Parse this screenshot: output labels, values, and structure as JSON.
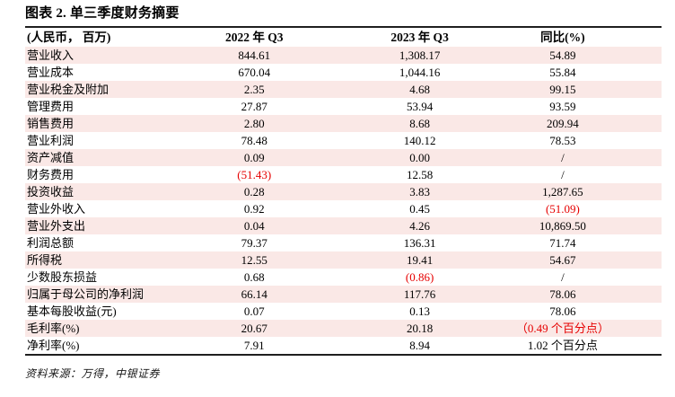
{
  "title": "图表 2. 单三季度财务摘要",
  "source": "资料来源：万得，中银证券",
  "colors": {
    "stripe_pink": "#fae8e6",
    "negative_red": "#e60000",
    "rule_dark": "#1f1f1f"
  },
  "table": {
    "headers": [
      "(人民币， 百万)",
      "2022 年 Q3",
      "2023 年 Q3",
      "同比(%)"
    ],
    "rows": [
      {
        "label": "营业收入",
        "q3_2022": "844.61",
        "q3_2023": "1,308.17",
        "yoy": "54.89"
      },
      {
        "label": "营业成本",
        "q3_2022": "670.04",
        "q3_2023": "1,044.16",
        "yoy": "55.84"
      },
      {
        "label": "营业税金及附加",
        "q3_2022": "2.35",
        "q3_2023": "4.68",
        "yoy": "99.15"
      },
      {
        "label": "管理费用",
        "q3_2022": "27.87",
        "q3_2023": "53.94",
        "yoy": "93.59"
      },
      {
        "label": "销售费用",
        "q3_2022": "2.80",
        "q3_2023": "8.68",
        "yoy": "209.94"
      },
      {
        "label": "营业利润",
        "q3_2022": "78.48",
        "q3_2023": "140.12",
        "yoy": "78.53"
      },
      {
        "label": "资产减值",
        "q3_2022": "0.09",
        "q3_2023": "0.00",
        "yoy": "/"
      },
      {
        "label": "财务费用",
        "q3_2022": "(51.43)",
        "q3_2023": "12.58",
        "yoy": "/",
        "red": [
          "q3_2022"
        ]
      },
      {
        "label": "投资收益",
        "q3_2022": "0.28",
        "q3_2023": "3.83",
        "yoy": "1,287.65"
      },
      {
        "label": "营业外收入",
        "q3_2022": "0.92",
        "q3_2023": "0.45",
        "yoy": "(51.09)",
        "red": [
          "yoy"
        ]
      },
      {
        "label": "营业外支出",
        "q3_2022": "0.04",
        "q3_2023": "4.26",
        "yoy": "10,869.50"
      },
      {
        "label": "利润总额",
        "q3_2022": "79.37",
        "q3_2023": "136.31",
        "yoy": "71.74"
      },
      {
        "label": "所得税",
        "q3_2022": "12.55",
        "q3_2023": "19.41",
        "yoy": "54.67"
      },
      {
        "label": "少数股东损益",
        "q3_2022": "0.68",
        "q3_2023": "(0.86)",
        "yoy": "/",
        "red": [
          "q3_2023"
        ]
      },
      {
        "label": "归属于母公司的净利润",
        "q3_2022": "66.14",
        "q3_2023": "117.76",
        "yoy": "78.06"
      },
      {
        "label": "基本每股收益(元)",
        "q3_2022": "0.07",
        "q3_2023": "0.13",
        "yoy": "78.06"
      },
      {
        "label": "毛利率(%)",
        "q3_2022": "20.67",
        "q3_2023": "20.18",
        "yoy": "（0.49 个百分点）",
        "red": [
          "yoy"
        ]
      },
      {
        "label": "净利率(%)",
        "q3_2022": "7.91",
        "q3_2023": "8.94",
        "yoy": "1.02 个百分点"
      }
    ]
  }
}
